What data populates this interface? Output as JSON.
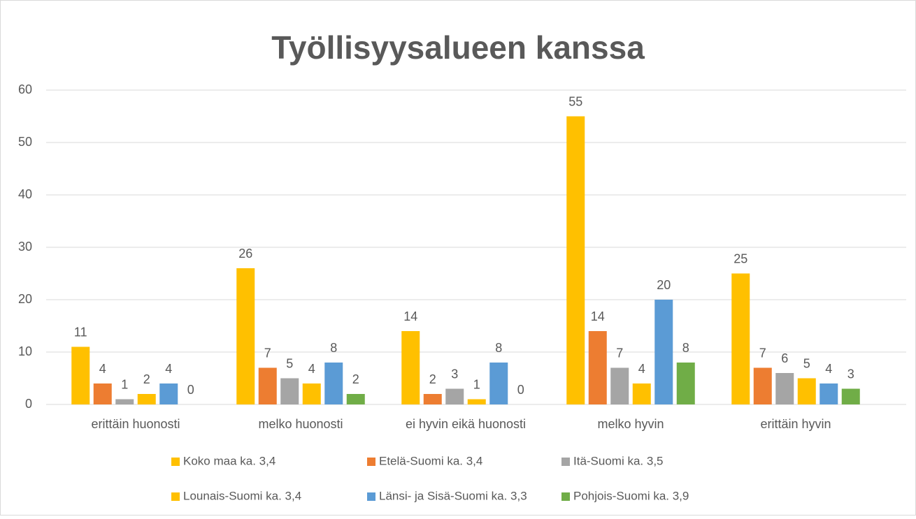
{
  "chart_data": {
    "type": "bar",
    "title": "Työllisyysalueen kanssa",
    "categories": [
      "erittäin huonosti",
      "melko huonosti",
      "ei hyvin eikä huonosti",
      "melko hyvin",
      "erittäin hyvin"
    ],
    "series": [
      {
        "name": "Koko maa ka. 3,4",
        "color": "#FFC000",
        "values": [
          11,
          26,
          14,
          55,
          25
        ]
      },
      {
        "name": "Etelä-Suomi ka. 3,4",
        "color": "#ED7D31",
        "values": [
          4,
          7,
          2,
          14,
          7
        ]
      },
      {
        "name": "Itä-Suomi ka. 3,5",
        "color": "#A5A5A5",
        "values": [
          1,
          5,
          3,
          7,
          6
        ]
      },
      {
        "name": "Lounais-Suomi ka. 3,4",
        "color": "#FFC000",
        "values": [
          2,
          4,
          1,
          4,
          5
        ]
      },
      {
        "name": "Länsi- ja Sisä-Suomi ka. 3,3",
        "color": "#5B9BD5",
        "values": [
          4,
          8,
          8,
          20,
          4
        ]
      },
      {
        "name": "Pohjois-Suomi ka. 3,9",
        "color": "#70AD47",
        "values": [
          0,
          2,
          0,
          8,
          3
        ]
      }
    ],
    "ylim": [
      0,
      60
    ],
    "yticks": [
      0,
      10,
      20,
      30,
      40,
      50,
      60
    ],
    "grid": true,
    "legend": "bottom"
  }
}
